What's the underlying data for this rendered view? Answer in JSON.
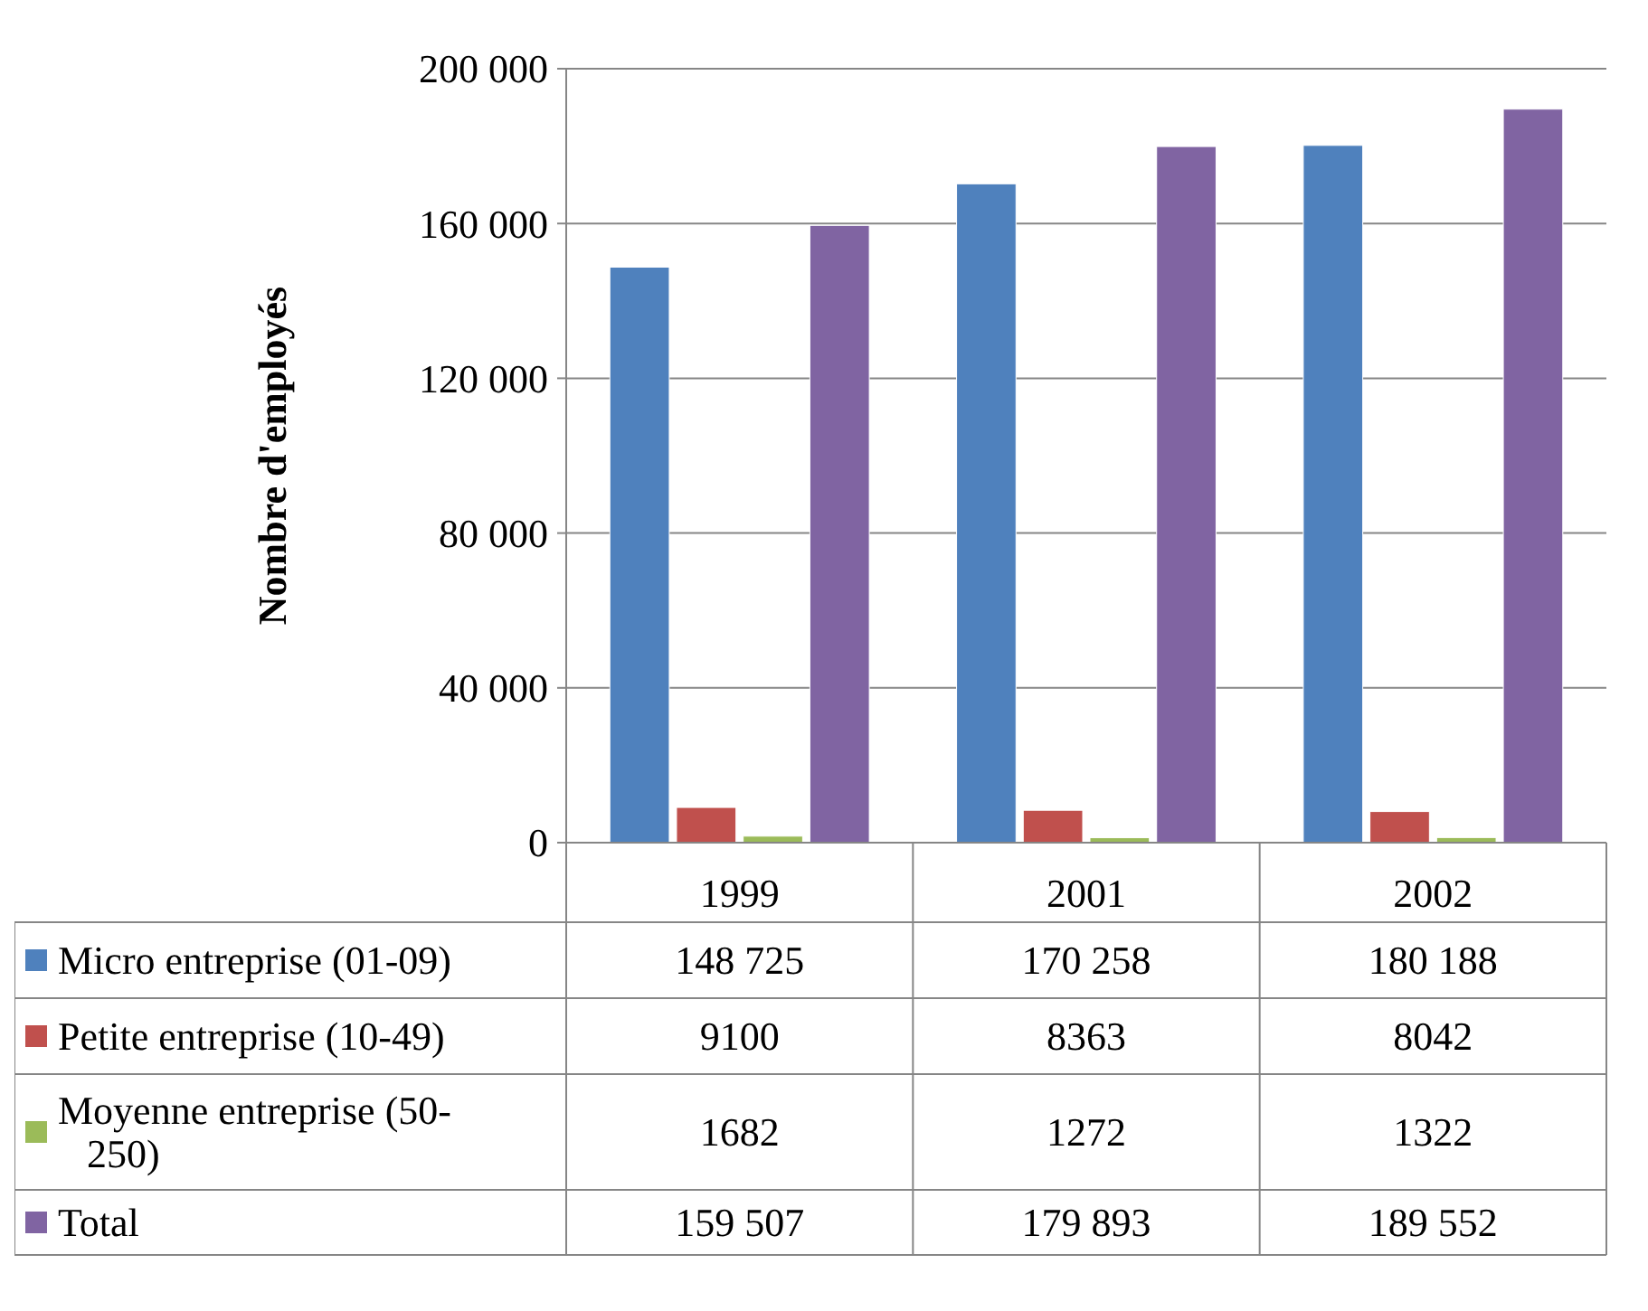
{
  "chart_data": {
    "type": "bar",
    "ylabel": "Nombre d'employés",
    "categories": [
      "1999",
      "2001",
      "2002"
    ],
    "ylim": [
      0,
      200000
    ],
    "yticks": [
      {
        "value": 0,
        "label": "0"
      },
      {
        "value": 40000,
        "label": "40 000"
      },
      {
        "value": 80000,
        "label": "80 000"
      },
      {
        "value": 120000,
        "label": "120 000"
      },
      {
        "value": 160000,
        "label": "160 000"
      },
      {
        "value": 200000,
        "label": "200 000"
      }
    ],
    "grid": "y",
    "legend": "bottom",
    "data_labels": true,
    "series": [
      {
        "name": "Micro entreprise (01-09)",
        "color": "#4f81bd",
        "values": [
          148725,
          170258,
          180188
        ],
        "value_labels": [
          "148 725",
          "170 258",
          "180 188"
        ]
      },
      {
        "name": "Petite entreprise (10-49)",
        "color": "#c0504d",
        "values": [
          9100,
          8363,
          8042
        ],
        "value_labels": [
          "9100",
          "8363",
          "8042"
        ]
      },
      {
        "name": "Moyenne entreprise (50-250)",
        "color": "#9bbb59",
        "values": [
          1682,
          1272,
          1322
        ],
        "value_labels": [
          "1682",
          "1272",
          "1322"
        ]
      },
      {
        "name": "Total",
        "color": "#8064a2",
        "values": [
          159507,
          179893,
          189552
        ],
        "value_labels": [
          "159 507",
          "179 893",
          "189 552"
        ]
      }
    ]
  }
}
